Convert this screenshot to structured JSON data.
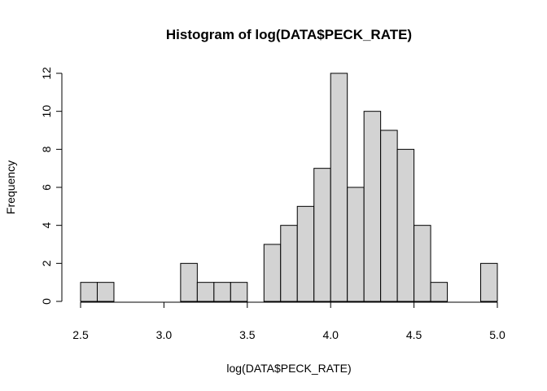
{
  "chart_data": {
    "type": "bar",
    "title": "Histogram of log(DATA$PECK_RATE)",
    "xlabel": "log(DATA$PECK_RATE)",
    "ylabel": "Frequency",
    "bin_width": 0.1,
    "bins": [
      {
        "start": 2.5,
        "end": 2.6,
        "count": 1
      },
      {
        "start": 2.6,
        "end": 2.7,
        "count": 1
      },
      {
        "start": 2.7,
        "end": 2.8,
        "count": 0
      },
      {
        "start": 2.8,
        "end": 2.9,
        "count": 0
      },
      {
        "start": 2.9,
        "end": 3.0,
        "count": 0
      },
      {
        "start": 3.0,
        "end": 3.1,
        "count": 0
      },
      {
        "start": 3.1,
        "end": 3.2,
        "count": 2
      },
      {
        "start": 3.2,
        "end": 3.3,
        "count": 1
      },
      {
        "start": 3.3,
        "end": 3.4,
        "count": 1
      },
      {
        "start": 3.4,
        "end": 3.5,
        "count": 1
      },
      {
        "start": 3.5,
        "end": 3.6,
        "count": 0
      },
      {
        "start": 3.6,
        "end": 3.7,
        "count": 3
      },
      {
        "start": 3.7,
        "end": 3.8,
        "count": 4
      },
      {
        "start": 3.8,
        "end": 3.9,
        "count": 5
      },
      {
        "start": 3.9,
        "end": 4.0,
        "count": 7
      },
      {
        "start": 4.0,
        "end": 4.1,
        "count": 12
      },
      {
        "start": 4.1,
        "end": 4.2,
        "count": 6
      },
      {
        "start": 4.2,
        "end": 4.3,
        "count": 10
      },
      {
        "start": 4.3,
        "end": 4.4,
        "count": 9
      },
      {
        "start": 4.4,
        "end": 4.5,
        "count": 8
      },
      {
        "start": 4.5,
        "end": 4.6,
        "count": 4
      },
      {
        "start": 4.6,
        "end": 4.7,
        "count": 1
      },
      {
        "start": 4.7,
        "end": 4.8,
        "count": 0
      },
      {
        "start": 4.8,
        "end": 4.9,
        "count": 0
      },
      {
        "start": 4.9,
        "end": 5.0,
        "count": 2
      }
    ],
    "xlim": [
      2.5,
      5.0
    ],
    "ylim": [
      0,
      12
    ],
    "xticks": [
      2.5,
      3.0,
      3.5,
      4.0,
      4.5,
      5.0
    ],
    "xtick_labels": [
      "2.5",
      "3.0",
      "3.5",
      "4.0",
      "4.5",
      "5.0"
    ],
    "yticks": [
      0,
      2,
      4,
      6,
      8,
      10,
      12
    ],
    "ytick_labels": [
      "0",
      "2",
      "4",
      "6",
      "8",
      "10",
      "12"
    ],
    "grid": false,
    "legend": "none",
    "colors": {
      "bar_fill": "#d3d3d3",
      "bar_stroke": "#000000"
    }
  }
}
